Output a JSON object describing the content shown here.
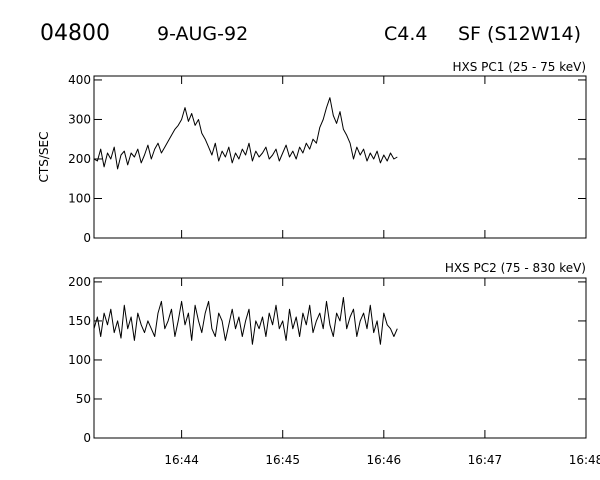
{
  "header": {
    "event_id": "04800",
    "date": "9-AUG-92",
    "goes_class": "C4.4",
    "location": "SF (S12W14)"
  },
  "chart_data": [
    {
      "type": "line",
      "title": "HXS PC1 (25 - 75 keV)",
      "ylabel": "CTS/SEC",
      "xlabel": "",
      "x_range": [
        "16:43:08",
        "16:48:00"
      ],
      "ylim": [
        0,
        410
      ],
      "yticks": [
        0,
        100,
        200,
        300,
        400
      ],
      "xticks": [
        "16:44",
        "16:45",
        "16:46",
        "16:47",
        "16:48"
      ],
      "grid": false,
      "series": [
        {
          "x": [
            "16:43:08",
            "16:43:10",
            "16:43:12",
            "16:43:14",
            "16:43:16",
            "16:43:18",
            "16:43:20",
            "16:43:22",
            "16:43:24",
            "16:43:26",
            "16:43:28",
            "16:43:30",
            "16:43:32",
            "16:43:34",
            "16:43:36",
            "16:43:38",
            "16:43:40",
            "16:43:42",
            "16:43:44",
            "16:43:46",
            "16:43:48",
            "16:43:50",
            "16:43:52",
            "16:43:54",
            "16:43:56",
            "16:43:58",
            "16:44:00",
            "16:44:02",
            "16:44:04",
            "16:44:06",
            "16:44:08",
            "16:44:10",
            "16:44:12",
            "16:44:14",
            "16:44:16",
            "16:44:18",
            "16:44:20",
            "16:44:22",
            "16:44:24",
            "16:44:26",
            "16:44:28",
            "16:44:30",
            "16:44:32",
            "16:44:34",
            "16:44:36",
            "16:44:38",
            "16:44:40",
            "16:44:42",
            "16:44:44",
            "16:44:46",
            "16:44:48",
            "16:44:50",
            "16:44:52",
            "16:44:54",
            "16:44:56",
            "16:44:58",
            "16:45:00",
            "16:45:02",
            "16:45:04",
            "16:45:06",
            "16:45:08",
            "16:45:10",
            "16:45:12",
            "16:45:14",
            "16:45:16",
            "16:45:18",
            "16:45:20",
            "16:45:22",
            "16:45:24",
            "16:45:26",
            "16:45:28",
            "16:45:30",
            "16:45:32",
            "16:45:34",
            "16:45:36",
            "16:45:38",
            "16:45:40",
            "16:45:42",
            "16:45:44",
            "16:45:46",
            "16:45:48",
            "16:45:50",
            "16:45:52",
            "16:45:54",
            "16:45:56",
            "16:45:58",
            "16:46:00",
            "16:46:02",
            "16:46:04",
            "16:46:06",
            "16:46:08"
          ],
          "y": [
            200,
            195,
            225,
            180,
            215,
            200,
            230,
            175,
            210,
            220,
            185,
            215,
            205,
            225,
            190,
            210,
            235,
            200,
            225,
            240,
            215,
            230,
            245,
            260,
            275,
            285,
            300,
            330,
            295,
            315,
            285,
            300,
            265,
            250,
            230,
            210,
            240,
            195,
            220,
            205,
            230,
            190,
            215,
            200,
            225,
            210,
            240,
            195,
            220,
            205,
            215,
            230,
            200,
            210,
            225,
            195,
            215,
            235,
            205,
            220,
            200,
            230,
            215,
            240,
            225,
            250,
            240,
            280,
            300,
            330,
            355,
            310,
            290,
            320,
            275,
            260,
            240,
            200,
            230,
            210,
            225,
            195,
            215,
            200,
            220,
            190,
            210,
            195,
            215,
            200,
            205
          ]
        }
      ]
    },
    {
      "type": "line",
      "title": "HXS PC2 (75 - 830 keV)",
      "ylabel": "",
      "xlabel": "",
      "x_range": [
        "16:43:08",
        "16:48:00"
      ],
      "ylim": [
        0,
        205
      ],
      "yticks": [
        0,
        50,
        100,
        150,
        200
      ],
      "xticks": [
        "16:44",
        "16:45",
        "16:46",
        "16:47",
        "16:48"
      ],
      "grid": false,
      "series": [
        {
          "x": [
            "16:43:08",
            "16:43:10",
            "16:43:12",
            "16:43:14",
            "16:43:16",
            "16:43:18",
            "16:43:20",
            "16:43:22",
            "16:43:24",
            "16:43:26",
            "16:43:28",
            "16:43:30",
            "16:43:32",
            "16:43:34",
            "16:43:36",
            "16:43:38",
            "16:43:40",
            "16:43:42",
            "16:43:44",
            "16:43:46",
            "16:43:48",
            "16:43:50",
            "16:43:52",
            "16:43:54",
            "16:43:56",
            "16:43:58",
            "16:44:00",
            "16:44:02",
            "16:44:04",
            "16:44:06",
            "16:44:08",
            "16:44:10",
            "16:44:12",
            "16:44:14",
            "16:44:16",
            "16:44:18",
            "16:44:20",
            "16:44:22",
            "16:44:24",
            "16:44:26",
            "16:44:28",
            "16:44:30",
            "16:44:32",
            "16:44:34",
            "16:44:36",
            "16:44:38",
            "16:44:40",
            "16:44:42",
            "16:44:44",
            "16:44:46",
            "16:44:48",
            "16:44:50",
            "16:44:52",
            "16:44:54",
            "16:44:56",
            "16:44:58",
            "16:45:00",
            "16:45:02",
            "16:45:04",
            "16:45:06",
            "16:45:08",
            "16:45:10",
            "16:45:12",
            "16:45:14",
            "16:45:16",
            "16:45:18",
            "16:45:20",
            "16:45:22",
            "16:45:24",
            "16:45:26",
            "16:45:28",
            "16:45:30",
            "16:45:32",
            "16:45:34",
            "16:45:36",
            "16:45:38",
            "16:45:40",
            "16:45:42",
            "16:45:44",
            "16:45:46",
            "16:45:48",
            "16:45:50",
            "16:45:52",
            "16:45:54",
            "16:45:56",
            "16:45:58",
            "16:46:00",
            "16:46:02",
            "16:46:04",
            "16:46:06",
            "16:46:08"
          ],
          "y": [
            140,
            155,
            130,
            160,
            145,
            165,
            135,
            150,
            128,
            170,
            140,
            155,
            125,
            160,
            145,
            135,
            150,
            140,
            130,
            160,
            175,
            140,
            150,
            165,
            130,
            150,
            175,
            145,
            160,
            125,
            170,
            150,
            135,
            160,
            175,
            140,
            130,
            160,
            150,
            125,
            145,
            165,
            140,
            155,
            130,
            150,
            165,
            120,
            150,
            140,
            155,
            130,
            160,
            145,
            170,
            140,
            150,
            125,
            165,
            140,
            155,
            130,
            160,
            145,
            170,
            135,
            150,
            160,
            140,
            175,
            145,
            130,
            160,
            150,
            180,
            140,
            155,
            165,
            130,
            150,
            160,
            140,
            170,
            135,
            150,
            120,
            160,
            145,
            140,
            130,
            140
          ]
        }
      ]
    }
  ]
}
